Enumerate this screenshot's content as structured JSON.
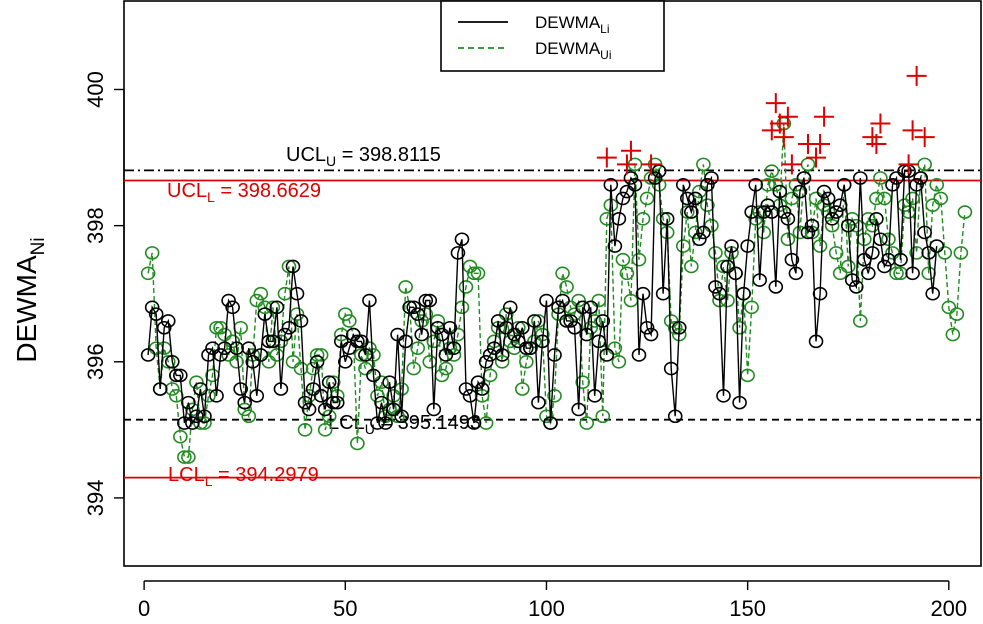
{
  "chart_data": {
    "type": "line",
    "title": "",
    "xlabel": "",
    "ylabel": "DEWMA",
    "ylabel_sub": "Ni",
    "xlim": [
      -5,
      208
    ],
    "ylim": [
      393.0,
      401.3
    ],
    "x_ticks": [
      0,
      50,
      100,
      150,
      200
    ],
    "y_ticks": [
      394,
      396,
      398,
      400
    ],
    "colors": {
      "lower": "#000000",
      "upper": "#228b22",
      "limit": "#dd0000",
      "out": "#dd0000"
    },
    "limits": {
      "ucl_u": {
        "label": "UCL",
        "sub": "U",
        "text": " = 398.8115",
        "value": 398.8115
      },
      "ucl_l": {
        "label": "UCL",
        "sub": "L",
        "text": " = 398.6629",
        "value": 398.6629
      },
      "lcl_u": {
        "label": "LCL",
        "sub": "U",
        "text": " = 395.1493",
        "value": 395.1493
      },
      "lcl_l": {
        "label": "LCL",
        "sub": "L",
        "text": " = 394.2979",
        "value": 394.2979
      }
    },
    "legend": [
      {
        "name": "DEWMA",
        "sub": "Li",
        "style": "solid"
      },
      {
        "name": "DEWMA",
        "sub": "Ui",
        "style": "dashed"
      }
    ],
    "series": [
      {
        "name": "DEWMA Li",
        "x_start": 1,
        "values": [
          396.1,
          396.8,
          396.7,
          395.6,
          396.5,
          396.6,
          396.0,
          395.8,
          395.8,
          395.1,
          395.4,
          395.1,
          395.2,
          395.6,
          395.2,
          396.1,
          396.2,
          395.5,
          396.1,
          396.2,
          396.9,
          396.8,
          396.2,
          395.6,
          395.4,
          396.2,
          396.0,
          395.5,
          396.1,
          396.7,
          396.3,
          396.3,
          396.8,
          395.6,
          396.4,
          396.5,
          397.4,
          397.0,
          396.6,
          395.4,
          395.3,
          395.6,
          396.0,
          395.5,
          395.3,
          395.7,
          395.4,
          395.4,
          396.3,
          396.0,
          396.2,
          396.4,
          396.3,
          396.3,
          396.1,
          396.9,
          395.8,
          395.1,
          395.4,
          395.1,
          395.7,
          395.3,
          396.4,
          395.2,
          396.3,
          396.8,
          396.8,
          396.7,
          396.4,
          396.9,
          396.9,
          395.3,
          396.5,
          396.4,
          396.1,
          396.5,
          396.2,
          397.6,
          397.8,
          395.6,
          395.5,
          395.1,
          395.7,
          395.6,
          396.0,
          396.1,
          396.2,
          396.6,
          396.1,
          396.5,
          396.8,
          396.4,
          396.3,
          396.5,
          396.2,
          396.2,
          396.6,
          395.4,
          396.3,
          396.9,
          395.1,
          396.1,
          396.8,
          396.9,
          396.6,
          396.6,
          396.5,
          395.3,
          396.8,
          396.4,
          396.8,
          395.5,
          396.3,
          396.6,
          396.1,
          398.6,
          397.7,
          398.1,
          398.4,
          398.5,
          398.7,
          398.6,
          396.1,
          397.0,
          396.5,
          396.4,
          398.7,
          398.8,
          397.0,
          398.1,
          395.9,
          395.2,
          396.5,
          398.6,
          398.4,
          398.2,
          398.4,
          397.8,
          397.9,
          398.6,
          398.7,
          397.1,
          397.0,
          395.5,
          397.4,
          397.7,
          397.3,
          395.4,
          397.0,
          397.7,
          398.2,
          398.6,
          397.2,
          398.2,
          398.3,
          398.2,
          397.1,
          398.5,
          398.2,
          398.1,
          397.5,
          397.3,
          398.5,
          398.7,
          397.9,
          398.0,
          396.3,
          397.0,
          398.5,
          398.4,
          398.1,
          398.2,
          398.3,
          398.6,
          398.0,
          397.2,
          397.1,
          398.7,
          397.5,
          397.3,
          397.6,
          398.1,
          397.8,
          397.4,
          397.5,
          398.6,
          398.7,
          397.5,
          398.8,
          398.8,
          397.3,
          398.6,
          398.7,
          397.9,
          397.6,
          397.0,
          397.7
        ]
      },
      {
        "name": "DEWMA Ui",
        "x_start": 1,
        "values": [
          397.3,
          397.6,
          396.2,
          395.6,
          396.2,
          396.0,
          395.6,
          395.5,
          394.9,
          394.6,
          394.6,
          395.3,
          395.7,
          395.1,
          395.1,
          395.5,
          395.8,
          396.5,
          396.5,
          396.4,
          396.1,
          396.3,
          396.0,
          396.5,
          395.3,
          395.2,
          396.1,
          396.9,
          397.0,
          396.8,
          396.0,
          396.8,
          396.1,
          396.3,
          397.0,
          397.4,
          396.0,
          396.7,
          395.9,
          395.0,
          395.5,
          395.9,
          396.1,
          396.1,
          395.0,
          395.2,
          395.7,
          395.5,
          396.4,
          396.7,
          396.6,
          396.4,
          394.8,
          396.1,
          395.9,
          396.2,
          396.1,
          395.5,
          395.7,
          395.2,
          395.3,
          395.5,
          395.2,
          395.6,
          397.1,
          396.8,
          395.9,
          396.2,
          396.6,
          396.7,
          396.0,
          396.3,
          396.6,
          395.8,
          395.9,
          396.2,
          396.1,
          396.4,
          396.8,
          397.1,
          397.4,
          397.3,
          397.3,
          395.5,
          395.1,
          395.8,
          396.3,
          396.5,
          396.0,
          396.7,
          396.3,
          396.2,
          396.5,
          395.6,
          396.0,
          396.2,
          396.3,
          396.6,
          396.4,
          395.2,
          395.1,
          395.5,
          396.7,
          397.3,
          397.1,
          396.8,
          396.7,
          396.9,
          395.7,
          395.1,
          396.5,
          396.6,
          396.9,
          395.2,
          398.1,
          398.3,
          396.2,
          396.0,
          397.5,
          397.3,
          396.9,
          398.9,
          397.5,
          398.1,
          398.4,
          398.7,
          398.9,
          398.6,
          398.1,
          397.9,
          396.6,
          396.5,
          396.4,
          397.7,
          398.2,
          397.4,
          397.9,
          398.5,
          398.9,
          398.3,
          398.0,
          397.6,
          396.9,
          397.4,
          396.9,
          397.6,
          397.3,
          396.5,
          397.0,
          395.8,
          396.8,
          398.1,
          398.2,
          397.9,
          398.6,
          398.8,
          398.6,
          398.3,
          399.5,
          397.8,
          398.4,
          398.6,
          397.9,
          398.7,
          398.9,
          397.9,
          398.4,
          397.7,
          398.3,
          398.2,
          398.0,
          397.6,
          397.3,
          398.6,
          397.4,
          398.1,
          398.0,
          396.6,
          397.8,
          398.1,
          398.0,
          398.4,
          398.7,
          398.4,
          397.8,
          397.6,
          397.3,
          397.3,
          398.3,
          398.2,
          398.4,
          397.6,
          398.7,
          398.9,
          397.3,
          398.3,
          398.6,
          398.4,
          397.6,
          396.8,
          396.4,
          396.7,
          397.6,
          398.2
        ]
      }
    ],
    "out_of_control_points": [
      {
        "x": 115,
        "y": 399.0
      },
      {
        "x": 120,
        "y": 398.9
      },
      {
        "x": 121,
        "y": 399.1
      },
      {
        "x": 126,
        "y": 398.9
      },
      {
        "x": 156,
        "y": 399.4
      },
      {
        "x": 157,
        "y": 399.8
      },
      {
        "x": 158,
        "y": 399.5
      },
      {
        "x": 159,
        "y": 399.3
      },
      {
        "x": 160,
        "y": 399.6
      },
      {
        "x": 161,
        "y": 398.9
      },
      {
        "x": 165,
        "y": 399.2
      },
      {
        "x": 167,
        "y": 399.0
      },
      {
        "x": 168,
        "y": 399.2
      },
      {
        "x": 169,
        "y": 399.6
      },
      {
        "x": 181,
        "y": 399.3
      },
      {
        "x": 182,
        "y": 399.2
      },
      {
        "x": 183,
        "y": 399.5
      },
      {
        "x": 190,
        "y": 398.9
      },
      {
        "x": 191,
        "y": 399.4
      },
      {
        "x": 192,
        "y": 400.2
      },
      {
        "x": 194,
        "y": 399.3
      }
    ]
  }
}
